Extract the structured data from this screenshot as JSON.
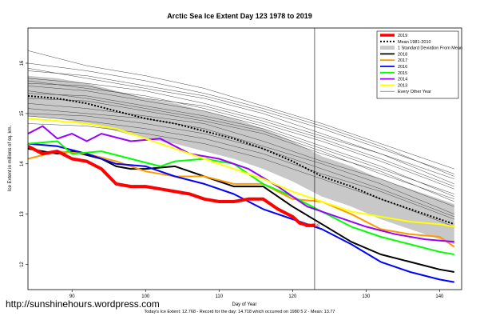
{
  "chart_data": {
    "type": "line",
    "title": "Arctic Sea Ice Extent Day 123 1978 to 2019",
    "xlabel": "Day of Year",
    "ylabel": "Ice Extent in millions of sq. km.",
    "xlim": [
      84,
      143
    ],
    "ylim": [
      11.5,
      16.7
    ],
    "x_ticks": [
      90,
      100,
      110,
      120,
      130,
      140
    ],
    "y_ticks": [
      12,
      13,
      14,
      15,
      16
    ],
    "grid": false,
    "legend_position": "top-right",
    "vline_day": 123,
    "point_label": "12.768",
    "legend": [
      {
        "label": "2019",
        "color": "#ff0000",
        "style": "thick"
      },
      {
        "label": "Mean 1981-2010",
        "color": "#000000",
        "style": "dotted"
      },
      {
        "label": "1 Standard Deviation From Mean",
        "color": "#c8c8c8",
        "style": "box"
      },
      {
        "label": "2018",
        "color": "#000000",
        "style": "solid"
      },
      {
        "label": "2017",
        "color": "#ff9900",
        "style": "solid"
      },
      {
        "label": "2016",
        "color": "#0000ff",
        "style": "solid"
      },
      {
        "label": "2015",
        "color": "#00ff00",
        "style": "solid"
      },
      {
        "label": "2014",
        "color": "#9900ff",
        "style": "solid"
      },
      {
        "label": "2013",
        "color": "#ffff00",
        "style": "solid"
      },
      {
        "label": "Every Other Year",
        "color": "#555555",
        "style": "thin"
      }
    ],
    "mean": {
      "name": "Mean 1981-2010",
      "x": [
        84,
        88,
        92,
        96,
        100,
        104,
        108,
        112,
        116,
        120,
        124,
        128,
        132,
        136,
        140,
        142
      ],
      "y": [
        15.35,
        15.3,
        15.2,
        15.05,
        14.9,
        14.8,
        14.65,
        14.5,
        14.3,
        14.05,
        13.75,
        13.55,
        13.3,
        13.1,
        12.9,
        12.8
      ]
    },
    "std_band": {
      "x": [
        84,
        88,
        92,
        96,
        100,
        104,
        108,
        112,
        116,
        120,
        124,
        128,
        132,
        136,
        140,
        142
      ],
      "upper": [
        15.75,
        15.7,
        15.6,
        15.45,
        15.3,
        15.2,
        15.05,
        14.9,
        14.7,
        14.45,
        14.15,
        13.95,
        13.7,
        13.5,
        13.3,
        13.2
      ],
      "lower": [
        14.95,
        14.9,
        14.8,
        14.65,
        14.5,
        14.4,
        14.25,
        14.1,
        13.9,
        13.65,
        13.35,
        13.15,
        12.9,
        12.7,
        12.5,
        12.4
      ]
    },
    "series": [
      {
        "name": "2019",
        "color": "#ff0000",
        "width": 4,
        "x": [
          84,
          86,
          88,
          90,
          92,
          94,
          96,
          98,
          100,
          102,
          104,
          106,
          108,
          110,
          112,
          114,
          116,
          118,
          120,
          121,
          122,
          123
        ],
        "y": [
          14.35,
          14.2,
          14.25,
          14.1,
          14.05,
          13.9,
          13.6,
          13.55,
          13.55,
          13.5,
          13.45,
          13.4,
          13.3,
          13.25,
          13.25,
          13.3,
          13.3,
          13.1,
          12.95,
          12.82,
          12.78,
          12.77
        ]
      },
      {
        "name": "2018",
        "color": "#000000",
        "width": 2,
        "x": [
          84,
          88,
          90,
          94,
          96,
          98,
          100,
          104,
          108,
          112,
          116,
          120,
          124,
          128,
          132,
          136,
          140,
          142
        ],
        "y": [
          14.3,
          14.2,
          14.25,
          14.1,
          13.95,
          13.9,
          13.9,
          13.95,
          13.75,
          13.55,
          13.55,
          13.15,
          12.8,
          12.45,
          12.2,
          12.05,
          11.9,
          11.85
        ]
      },
      {
        "name": "2017",
        "color": "#ff9900",
        "width": 2,
        "x": [
          84,
          88,
          92,
          96,
          100,
          104,
          108,
          112,
          116,
          120,
          124,
          128,
          132,
          136,
          140,
          142
        ],
        "y": [
          14.1,
          14.25,
          14.2,
          14.05,
          13.85,
          13.75,
          13.75,
          13.6,
          13.6,
          13.3,
          13.25,
          13.0,
          12.7,
          12.6,
          12.55,
          12.35
        ]
      },
      {
        "name": "2016",
        "color": "#0000ff",
        "width": 2,
        "x": [
          84,
          88,
          92,
          96,
          100,
          104,
          108,
          112,
          116,
          120,
          124,
          128,
          132,
          136,
          140,
          142
        ],
        "y": [
          14.4,
          14.35,
          14.2,
          14.0,
          13.95,
          13.75,
          13.6,
          13.4,
          13.1,
          12.9,
          12.7,
          12.4,
          12.05,
          11.85,
          11.7,
          11.65
        ]
      },
      {
        "name": "2015",
        "color": "#00ff00",
        "width": 2,
        "x": [
          84,
          88,
          90,
          94,
          98,
          102,
          104,
          108,
          112,
          116,
          120,
          124,
          128,
          132,
          136,
          140,
          142
        ],
        "y": [
          14.4,
          14.45,
          14.2,
          14.25,
          14.1,
          13.95,
          14.05,
          14.1,
          14.0,
          13.6,
          13.35,
          13.05,
          12.75,
          12.55,
          12.4,
          12.25,
          12.2
        ]
      },
      {
        "name": "2014",
        "color": "#9900ff",
        "width": 2,
        "x": [
          84,
          86,
          88,
          90,
          92,
          94,
          98,
          102,
          106,
          110,
          114,
          118,
          122,
          126,
          130,
          134,
          138,
          142
        ],
        "y": [
          14.6,
          14.75,
          14.5,
          14.6,
          14.45,
          14.6,
          14.45,
          14.5,
          14.2,
          14.1,
          13.9,
          13.55,
          13.15,
          12.95,
          12.75,
          12.6,
          12.5,
          12.45
        ]
      },
      {
        "name": "2013",
        "color": "#ffff00",
        "width": 2,
        "x": [
          84,
          88,
          92,
          96,
          100,
          104,
          108,
          112,
          116,
          120,
          124,
          128,
          132,
          136,
          140,
          142
        ],
        "y": [
          14.9,
          14.85,
          14.8,
          14.7,
          14.5,
          14.3,
          14.1,
          13.9,
          13.7,
          13.45,
          13.25,
          13.05,
          12.95,
          12.85,
          12.8,
          12.75
        ]
      }
    ],
    "other_years": [
      {
        "x": [
          84,
          92,
          100,
          108,
          116,
          124,
          132,
          142
        ],
        "y": [
          15.9,
          15.7,
          15.5,
          15.3,
          15.0,
          14.6,
          14.2,
          13.6
        ]
      },
      {
        "x": [
          84,
          92,
          100,
          108,
          116,
          124,
          132,
          142
        ],
        "y": [
          16.25,
          15.95,
          15.75,
          15.5,
          15.15,
          14.8,
          14.4,
          13.9
        ]
      },
      {
        "x": [
          84,
          92,
          100,
          108,
          116,
          124,
          132,
          142
        ],
        "y": [
          15.6,
          15.55,
          15.3,
          15.15,
          14.85,
          14.5,
          14.1,
          13.55
        ]
      },
      {
        "x": [
          84,
          92,
          100,
          108,
          116,
          124,
          132,
          142
        ],
        "y": [
          15.4,
          15.35,
          15.15,
          14.95,
          14.7,
          14.3,
          13.9,
          13.4
        ]
      },
      {
        "x": [
          84,
          92,
          100,
          108,
          116,
          124,
          132,
          142
        ],
        "y": [
          15.2,
          15.1,
          14.95,
          14.8,
          14.45,
          14.05,
          13.7,
          13.15
        ]
      },
      {
        "x": [
          84,
          92,
          100,
          108,
          116,
          124,
          132,
          142
        ],
        "y": [
          15.0,
          14.95,
          14.8,
          14.6,
          14.3,
          13.9,
          13.5,
          12.95
        ]
      },
      {
        "x": [
          84,
          92,
          100,
          108,
          116,
          124,
          132,
          142
        ],
        "y": [
          14.8,
          14.75,
          14.6,
          14.4,
          14.1,
          13.7,
          13.3,
          12.75
        ]
      },
      {
        "x": [
          84,
          92,
          100,
          108,
          116,
          124,
          132,
          142
        ],
        "y": [
          15.55,
          15.45,
          15.25,
          15.05,
          14.75,
          14.35,
          13.95,
          13.35
        ]
      },
      {
        "x": [
          84,
          92,
          100,
          108,
          116,
          124,
          132,
          142
        ],
        "y": [
          15.7,
          15.6,
          15.45,
          15.2,
          14.9,
          14.55,
          14.2,
          13.7
        ]
      },
      {
        "x": [
          84,
          92,
          100,
          108,
          116,
          124,
          132,
          142
        ],
        "y": [
          15.3,
          15.25,
          15.05,
          14.85,
          14.6,
          14.2,
          13.85,
          13.25
        ]
      },
      {
        "x": [
          84,
          92,
          100,
          108,
          116,
          124,
          132,
          142
        ],
        "y": [
          15.85,
          15.75,
          15.55,
          15.35,
          15.05,
          14.7,
          14.3,
          13.8
        ]
      },
      {
        "x": [
          84,
          92,
          100,
          108,
          116,
          124,
          132,
          142
        ],
        "y": [
          15.1,
          15.0,
          14.9,
          14.7,
          14.35,
          14.0,
          13.6,
          13.0
        ]
      },
      {
        "x": [
          84,
          92,
          100,
          108,
          116,
          124,
          132,
          142
        ],
        "y": [
          15.45,
          15.3,
          15.1,
          14.9,
          14.65,
          14.25,
          13.8,
          13.3
        ]
      },
      {
        "x": [
          84,
          92,
          100,
          108,
          116,
          124,
          132,
          142
        ],
        "y": [
          14.95,
          14.85,
          14.7,
          14.5,
          14.2,
          13.8,
          13.45,
          12.9
        ]
      },
      {
        "x": [
          84,
          92,
          100,
          108,
          116,
          124,
          132,
          142
        ],
        "y": [
          15.65,
          15.5,
          15.35,
          15.1,
          14.8,
          14.45,
          14.05,
          13.5
        ]
      },
      {
        "x": [
          84,
          92,
          100,
          108,
          116,
          124,
          132,
          142
        ],
        "y": [
          16.0,
          15.85,
          15.65,
          15.4,
          15.1,
          14.75,
          14.35,
          13.75
        ]
      }
    ]
  },
  "footer": {
    "watermark": "http://sunshinehours.wordpress.com",
    "caption": "Today's Ice Extent: 12.768  - Record for the day: 14.718 which occurred on 1980 5 2  - Mean: 13.77"
  }
}
